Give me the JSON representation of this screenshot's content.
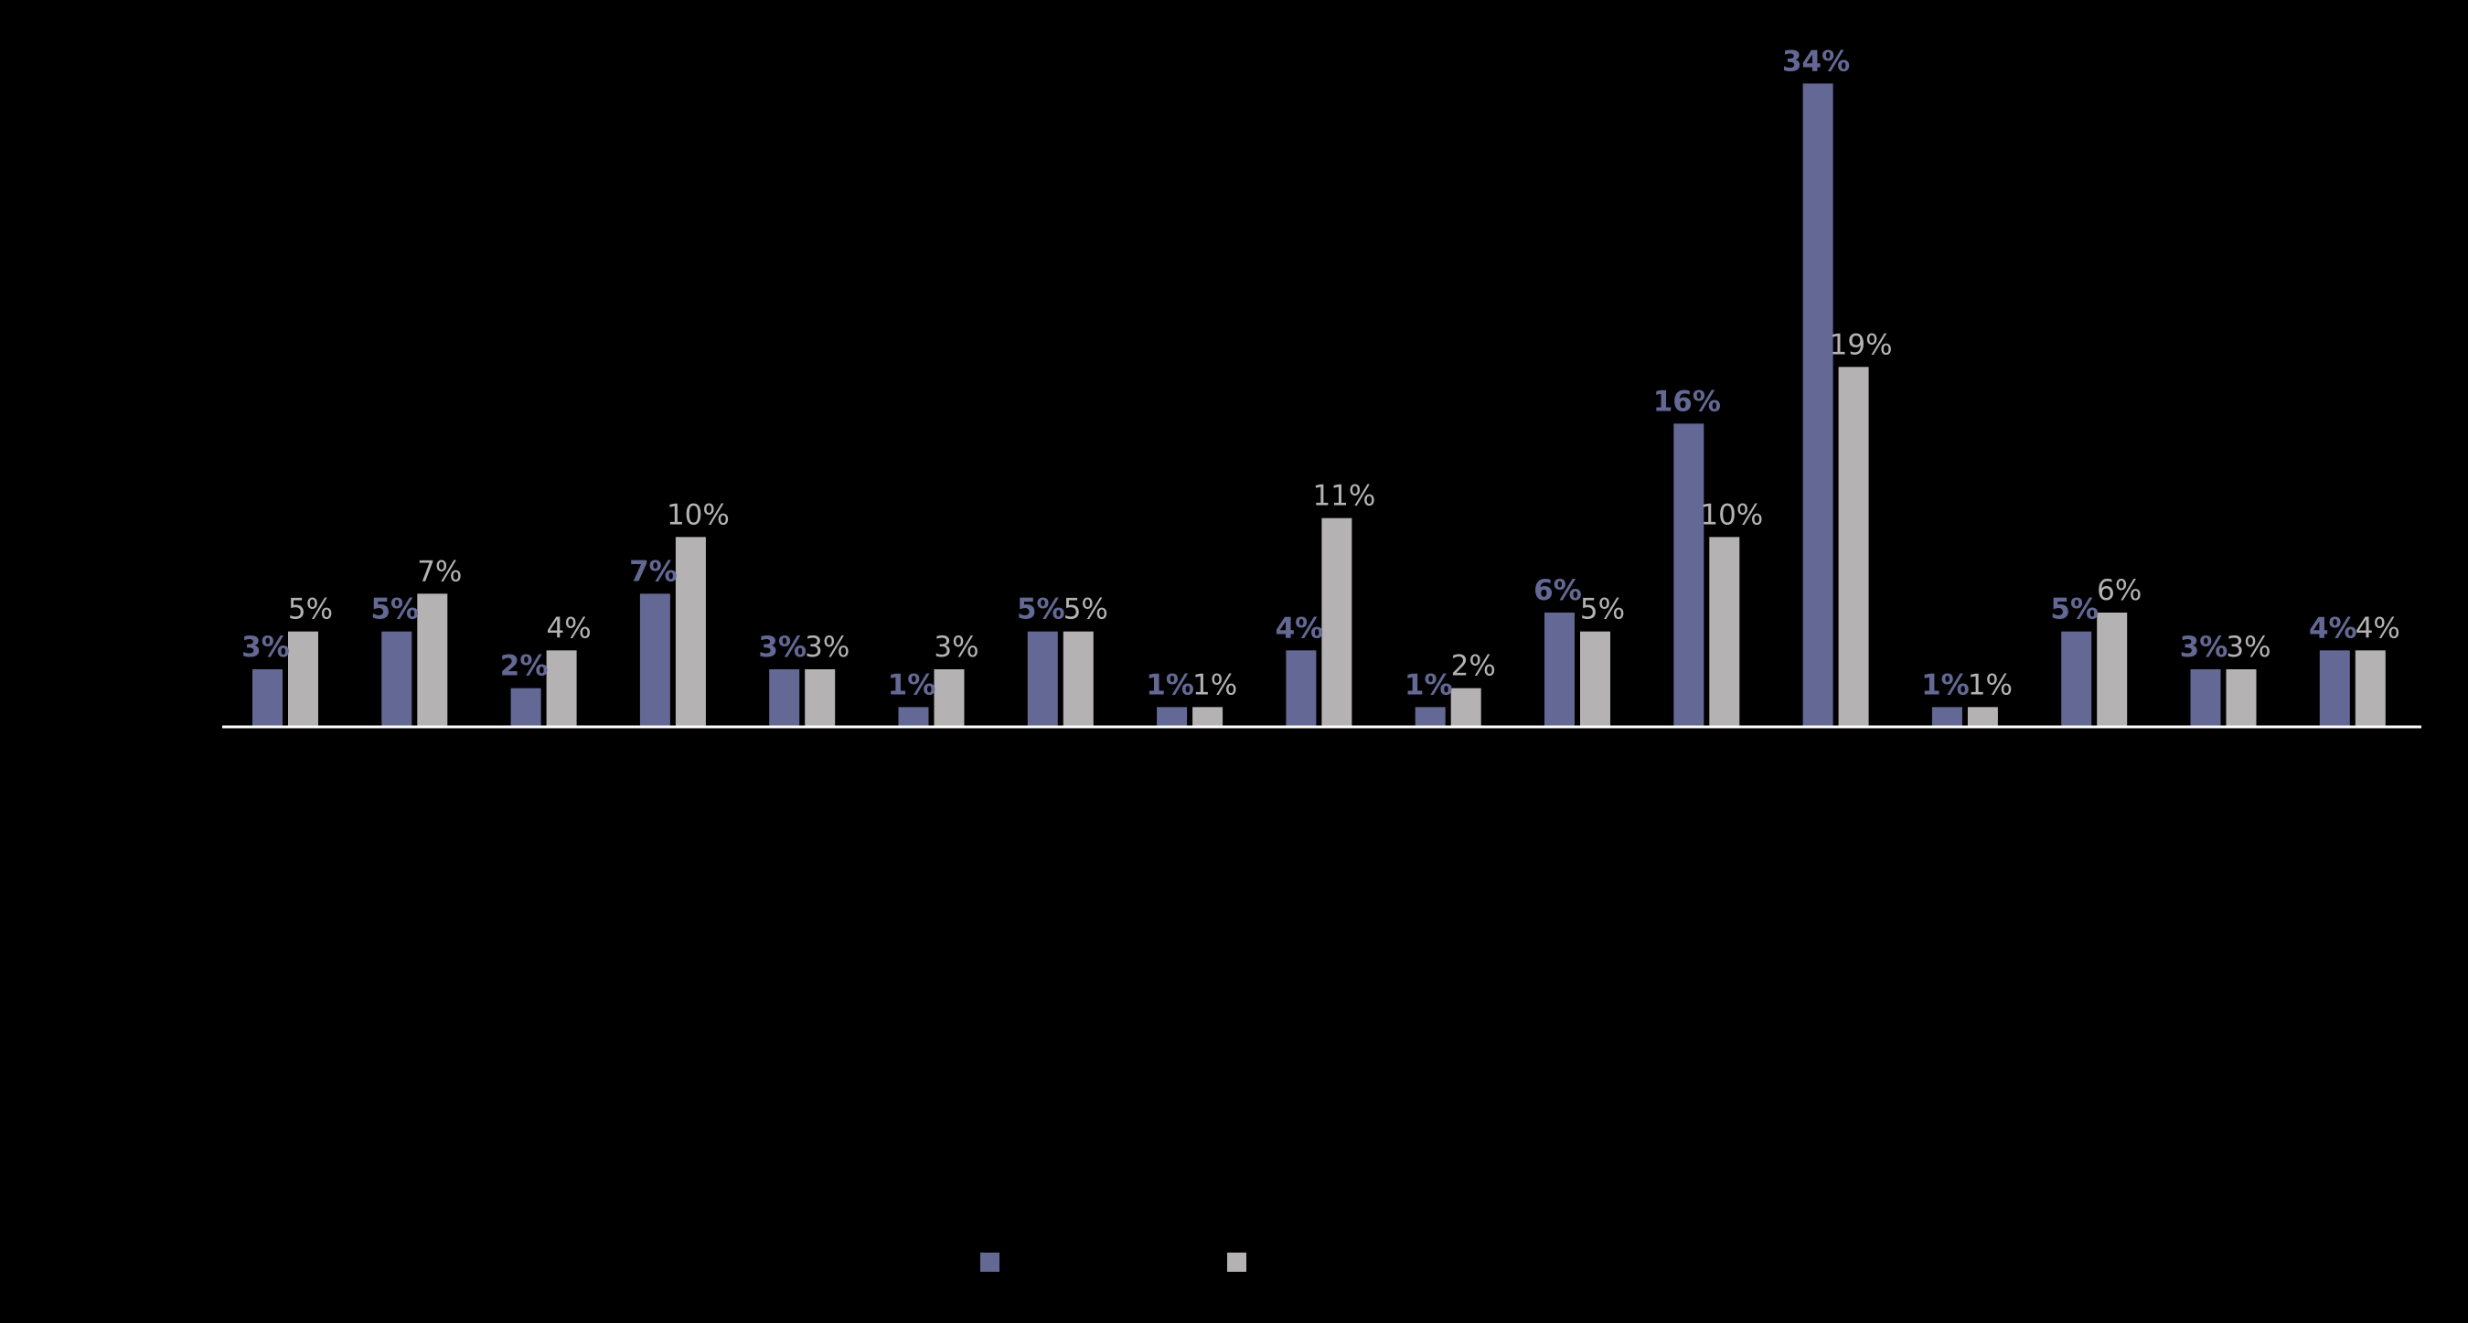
{
  "chart_data": {
    "type": "bar",
    "title": "",
    "xlabel": "",
    "ylabel": "",
    "categories": [
      "",
      "",
      "",
      "",
      "",
      "",
      "",
      "",
      "",
      "",
      "",
      "",
      "",
      "",
      "",
      "",
      ""
    ],
    "ylim": [
      0,
      36
    ],
    "grid": false,
    "legend_position": "bottom-center",
    "series": [
      {
        "values": [
          3,
          5,
          2,
          7,
          3,
          1,
          5,
          1,
          4,
          1,
          6,
          16,
          34,
          1,
          5,
          3,
          4
        ],
        "labels": [
          "3%",
          "5%",
          "2%",
          "7%",
          "3%",
          "1%",
          "5%",
          "1%",
          "4%",
          "1%",
          "6%",
          "16%",
          "34%",
          "1%",
          "5%",
          "3%",
          "4%"
        ],
        "color": "#646894",
        "label_style": "bold"
      },
      {
        "values": [
          5,
          7,
          4,
          10,
          3,
          3,
          5,
          1,
          11,
          2,
          5,
          10,
          19,
          1,
          6,
          3,
          4
        ],
        "labels": [
          "5%",
          "7%",
          "4%",
          "10%",
          "3%",
          "3%",
          "5%",
          "1%",
          "11%",
          "2%",
          "5%",
          "10%",
          "19%",
          "1%",
          "6%",
          "3%",
          "4%"
        ],
        "color": "#b4b2b2",
        "label_style": "normal"
      }
    ]
  },
  "colors": {
    "background": "#000000",
    "axis": "#ffffff",
    "series_a": "#646894",
    "series_b": "#b4b2b2"
  }
}
